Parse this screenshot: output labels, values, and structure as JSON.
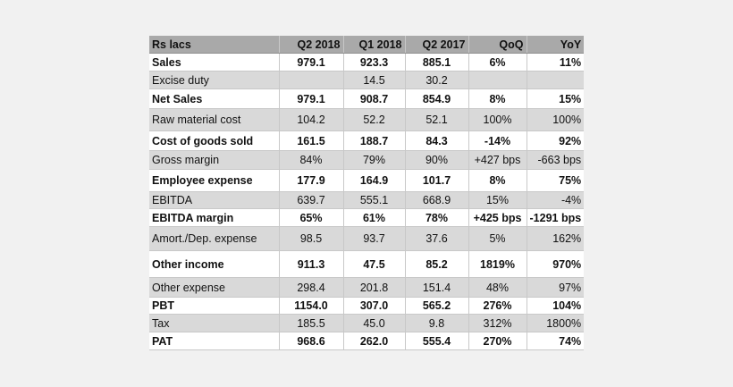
{
  "table": {
    "headers": [
      "Rs lacs",
      "Q2 2018",
      "Q1 2018",
      "Q2 2017",
      "QoQ",
      "YoY"
    ],
    "rows": [
      {
        "label": "Sales",
        "q2_2018": "979.1",
        "q1_2018": "923.3",
        "q2_2017": "885.1",
        "qoq": "6%",
        "yoy": "11%"
      },
      {
        "label": "Excise duty",
        "q2_2018": "",
        "q1_2018": "14.5",
        "q2_2017": "30.2",
        "qoq": "",
        "yoy": ""
      },
      {
        "label": "Net Sales",
        "q2_2018": "979.1",
        "q1_2018": "908.7",
        "q2_2017": "854.9",
        "qoq": "8%",
        "yoy": "15%"
      },
      {
        "label": "Raw material cost",
        "q2_2018": "104.2",
        "q1_2018": "52.2",
        "q2_2017": "52.1",
        "qoq": "100%",
        "yoy": "100%"
      },
      {
        "label": "Cost of goods sold",
        "q2_2018": "161.5",
        "q1_2018": "188.7",
        "q2_2017": "84.3",
        "qoq": "-14%",
        "yoy": "92%"
      },
      {
        "label": "Gross margin",
        "q2_2018": "84%",
        "q1_2018": "79%",
        "q2_2017": "90%",
        "qoq": "+427 bps",
        "yoy": "-663 bps"
      },
      {
        "label": "Employee expense",
        "q2_2018": "177.9",
        "q1_2018": "164.9",
        "q2_2017": "101.7",
        "qoq": "8%",
        "yoy": "75%"
      },
      {
        "label": "EBITDA",
        "q2_2018": "639.7",
        "q1_2018": "555.1",
        "q2_2017": "668.9",
        "qoq": "15%",
        "yoy": "-4%"
      },
      {
        "label": "EBITDA margin",
        "q2_2018": "65%",
        "q1_2018": "61%",
        "q2_2017": "78%",
        "qoq": "+425 bps",
        "yoy": "-1291 bps"
      },
      {
        "label": "Amort./Dep. expense",
        "q2_2018": "98.5",
        "q1_2018": "93.7",
        "q2_2017": "37.6",
        "qoq": "5%",
        "yoy": "162%"
      },
      {
        "label": "Other income",
        "q2_2018": "911.3",
        "q1_2018": "47.5",
        "q2_2017": "85.2",
        "qoq": "1819%",
        "yoy": "970%"
      },
      {
        "label": "Other expense",
        "q2_2018": "298.4",
        "q1_2018": "201.8",
        "q2_2017": "151.4",
        "qoq": "48%",
        "yoy": "97%"
      },
      {
        "label": "PBT",
        "q2_2018": "1154.0",
        "q1_2018": "307.0",
        "q2_2017": "565.2",
        "qoq": "276%",
        "yoy": "104%"
      },
      {
        "label": "Tax",
        "q2_2018": "185.5",
        "q1_2018": "45.0",
        "q2_2017": "9.8",
        "qoq": "312%",
        "yoy": "1800%"
      },
      {
        "label": "PAT",
        "q2_2018": "968.6",
        "q1_2018": "262.0",
        "q2_2017": "555.4",
        "qoq": "270%",
        "yoy": "74%"
      }
    ]
  }
}
